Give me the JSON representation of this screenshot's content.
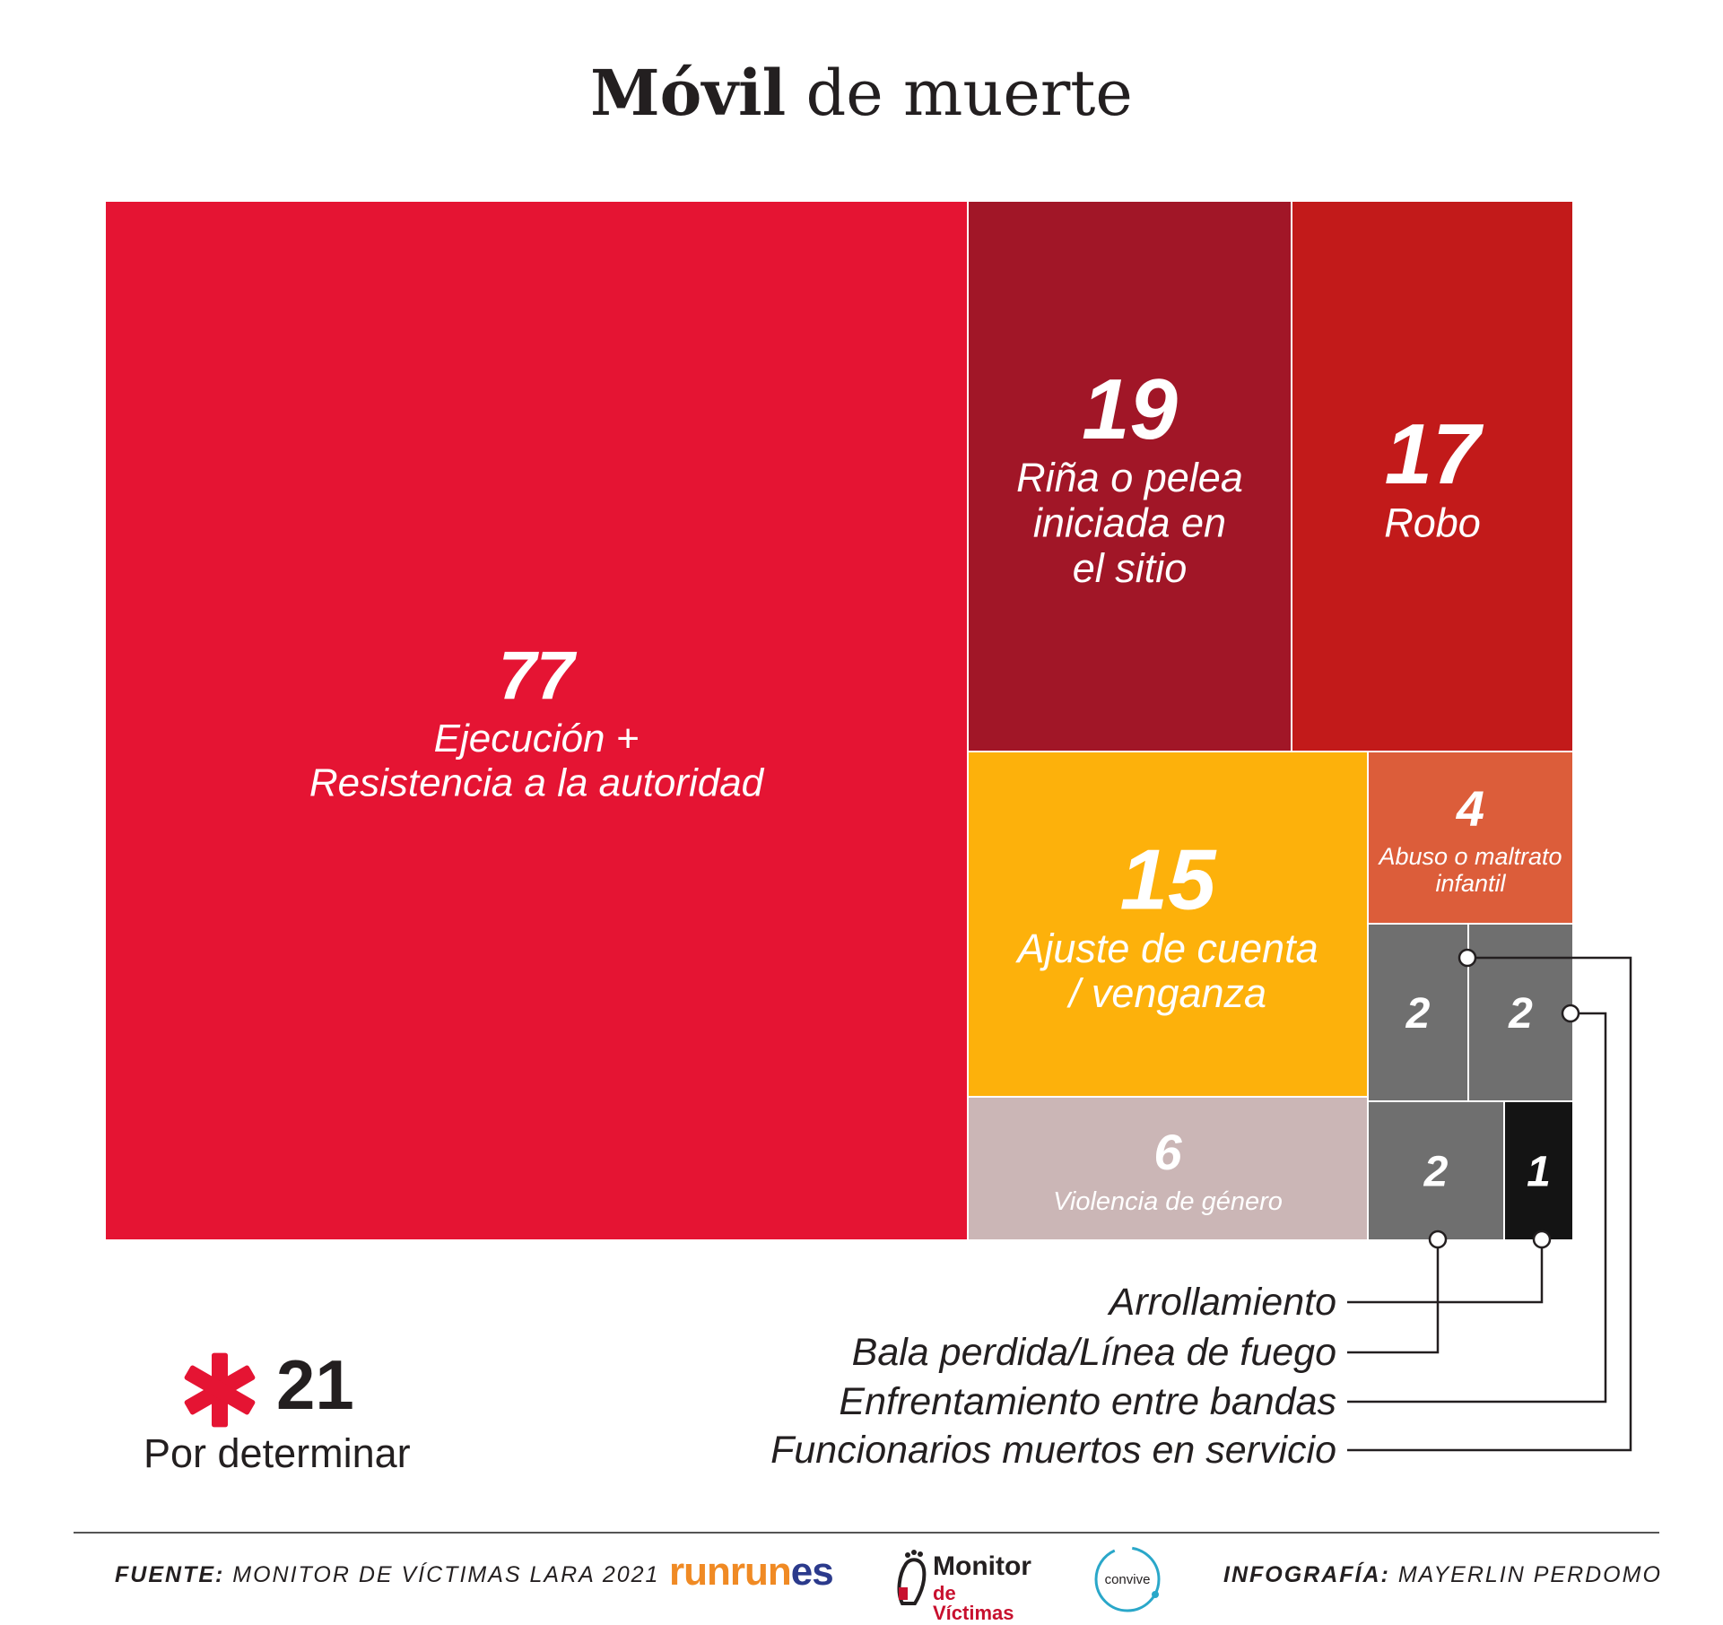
{
  "title": {
    "bold": "Móvil",
    "rest": " de muerte"
  },
  "colors": {
    "red": "#e51433",
    "dark_red": "#a11627",
    "crimson": "#c21a1a",
    "amber": "#fdb10b",
    "orange": "#dc5d3a",
    "mauve": "#cbb6b6",
    "gray": "#6f6f6f",
    "black": "#141414"
  },
  "chart_data": {
    "type": "treemap",
    "title": "Móvil de muerte",
    "items": [
      {
        "id": "ejecucion",
        "value": 77,
        "label_lines": [
          "Ejecución +",
          "Resistencia a la autoridad"
        ],
        "color": "#e51433"
      },
      {
        "id": "rina",
        "value": 19,
        "label_lines": [
          "Riña o pelea",
          "iniciada en",
          "el sitio"
        ],
        "color": "#a11627"
      },
      {
        "id": "robo",
        "value": 17,
        "label_lines": [
          "Robo"
        ],
        "color": "#c21a1a"
      },
      {
        "id": "ajuste",
        "value": 15,
        "label_lines": [
          "Ajuste de cuenta",
          "/ venganza"
        ],
        "color": "#fdb10b"
      },
      {
        "id": "violencia",
        "value": 6,
        "label_lines": [
          "Violencia de género"
        ],
        "color": "#cbb6b6"
      },
      {
        "id": "abuso",
        "value": 4,
        "label_lines": [
          "Abuso o maltrato",
          "infantil"
        ],
        "color": "#dc5d3a"
      },
      {
        "id": "funcionarios",
        "value": 2,
        "label": "Funcionarios muertos en servicio",
        "color": "#6f6f6f"
      },
      {
        "id": "enfrentamiento",
        "value": 2,
        "label": "Enfrentamiento entre bandas",
        "color": "#6f6f6f"
      },
      {
        "id": "bala",
        "value": 2,
        "label": "Bala perdida/Línea de fuego",
        "color": "#6f6f6f"
      },
      {
        "id": "arrollamiento",
        "value": 1,
        "label": "Arrollamiento",
        "color": "#141414"
      }
    ],
    "callout_labels": [
      "Arrollamiento",
      "Bala perdida/Línea de fuego",
      "Enfrentamiento entre bandas",
      "Funcionarios muertos en servicio"
    ],
    "pending": {
      "symbol": "*",
      "value": 21,
      "label": "Por determinar"
    }
  },
  "footer": {
    "source_label": "FUENTE:",
    "source_text": "MONITOR DE VÍCTIMAS LARA 2021",
    "credit_label": "INFOGRAFÍA:",
    "credit_text": "MAYERLIN PERDOMO",
    "logos": {
      "runrunes_a": "runrun",
      "runrunes_b": "es",
      "monitor_1": "Monitor",
      "monitor_2": "de Víctimas",
      "convive": "convive"
    }
  }
}
